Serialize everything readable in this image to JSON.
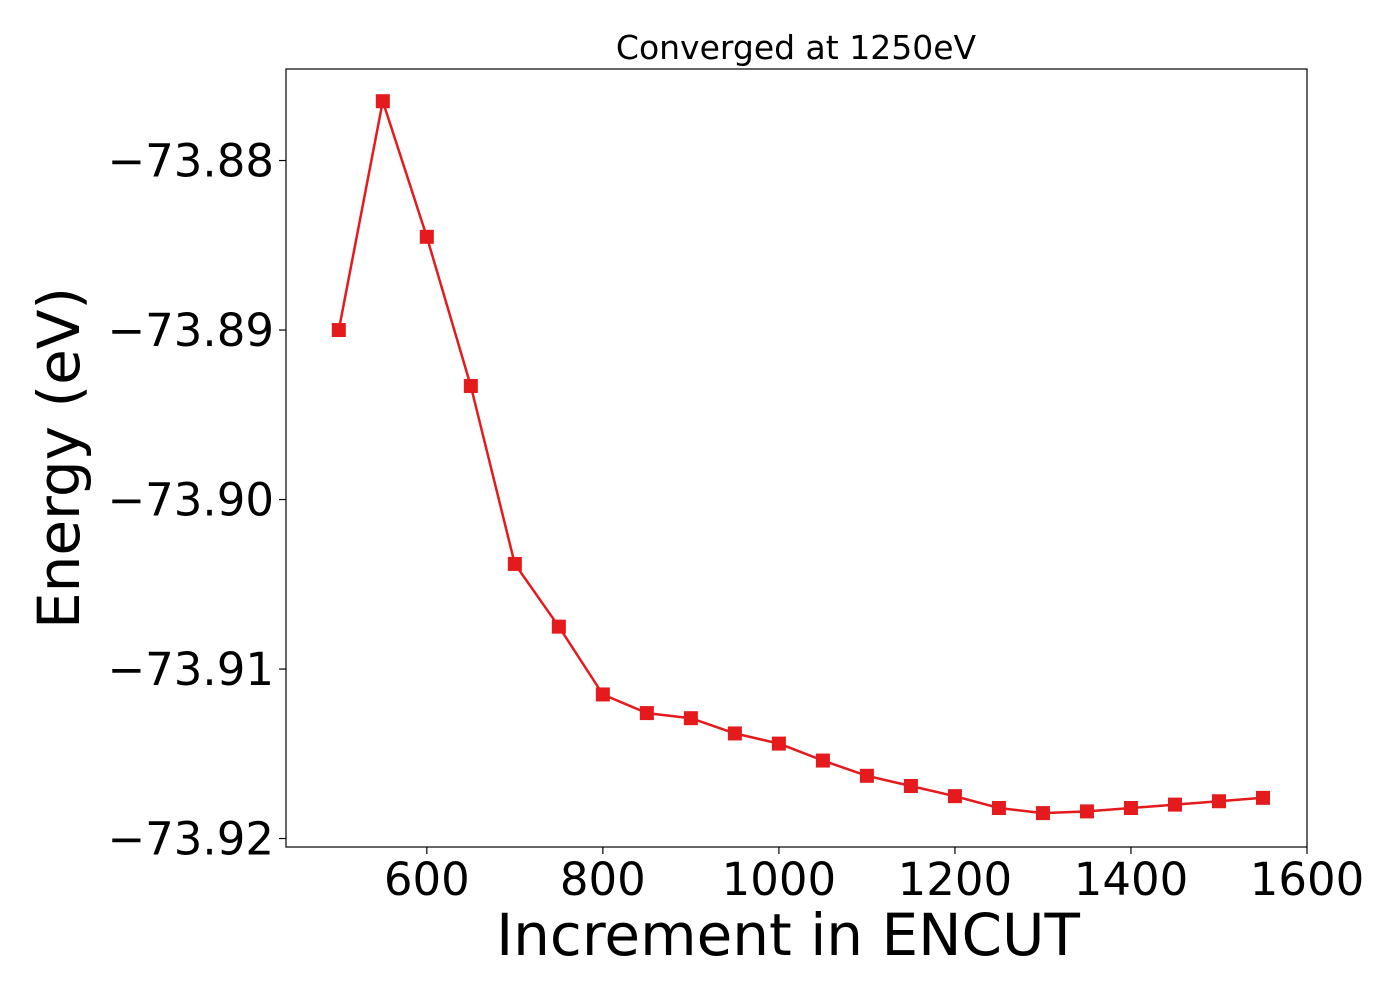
{
  "chart_data": {
    "type": "line",
    "title": "Converged at 1250eV",
    "xlabel": "Increment in ENCUT",
    "ylabel": "Energy (eV)",
    "xlim": [
      440,
      1600
    ],
    "ylim": [
      -73.9205,
      -73.8746
    ],
    "xticks": [
      600,
      800,
      1000,
      1200,
      1400,
      1600
    ],
    "xtick_labels": [
      "600",
      "800",
      "1000",
      "1200",
      "1400",
      "1600"
    ],
    "yticks": [
      -73.88,
      -73.89,
      -73.9,
      -73.91,
      -73.92
    ],
    "ytick_labels": [
      "−73.88",
      "−73.89",
      "−73.90",
      "−73.91",
      "−73.92"
    ],
    "grid": false,
    "series": [
      {
        "color": "#e41a1c",
        "marker": "square",
        "x": [
          500,
          550,
          600,
          650,
          700,
          750,
          800,
          850,
          900,
          950,
          1000,
          1050,
          1100,
          1150,
          1200,
          1250,
          1300,
          1350,
          1400,
          1450,
          1500,
          1550
        ],
        "y": [
          -73.89,
          -73.8765,
          -73.8845,
          -73.8933,
          -73.9038,
          -73.9075,
          -73.9115,
          -73.9126,
          -73.9129,
          -73.9138,
          -73.9144,
          -73.9154,
          -73.9163,
          -73.9169,
          -73.9175,
          -73.9182,
          -73.9185,
          -73.9184,
          -73.9182,
          -73.918,
          -73.9178,
          -73.9176
        ]
      }
    ]
  }
}
